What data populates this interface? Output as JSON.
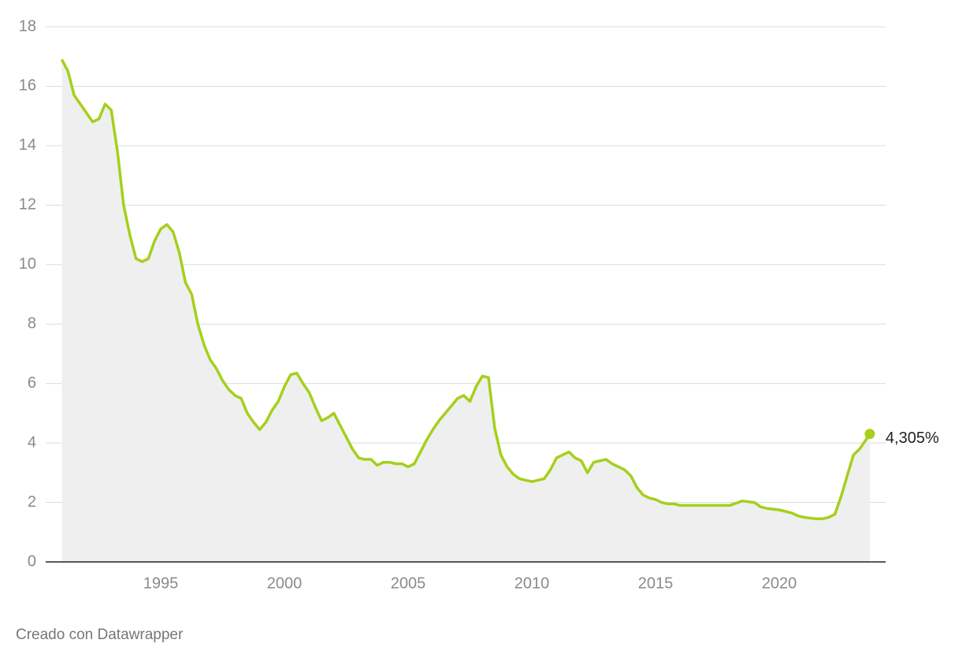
{
  "chart_data": {
    "type": "line",
    "x": [
      1991.0,
      1991.25,
      1991.5,
      1991.75,
      1992.0,
      1992.25,
      1992.5,
      1992.75,
      1993.0,
      1993.25,
      1993.5,
      1993.75,
      1994.0,
      1994.25,
      1994.5,
      1994.75,
      1995.0,
      1995.25,
      1995.5,
      1995.75,
      1996.0,
      1996.25,
      1996.5,
      1996.75,
      1997.0,
      1997.25,
      1997.5,
      1997.75,
      1998.0,
      1998.25,
      1998.5,
      1998.75,
      1999.0,
      1999.25,
      1999.5,
      1999.75,
      2000.0,
      2000.25,
      2000.5,
      2000.75,
      2001.0,
      2001.25,
      2001.5,
      2001.75,
      2002.0,
      2002.25,
      2002.5,
      2002.75,
      2003.0,
      2003.25,
      2003.5,
      2003.75,
      2004.0,
      2004.25,
      2004.5,
      2004.75,
      2005.0,
      2005.25,
      2005.5,
      2005.75,
      2006.0,
      2006.25,
      2006.5,
      2006.75,
      2007.0,
      2007.25,
      2007.5,
      2007.75,
      2008.0,
      2008.25,
      2008.5,
      2008.75,
      2009.0,
      2009.25,
      2009.5,
      2009.75,
      2010.0,
      2010.25,
      2010.5,
      2010.75,
      2011.0,
      2011.25,
      2011.5,
      2011.75,
      2012.0,
      2012.25,
      2012.5,
      2012.75,
      2013.0,
      2013.25,
      2013.5,
      2013.75,
      2014.0,
      2014.25,
      2014.5,
      2014.75,
      2015.0,
      2015.25,
      2015.5,
      2015.75,
      2016.0,
      2016.5,
      2017.0,
      2017.5,
      2018.0,
      2018.5,
      2019.0,
      2019.25,
      2019.5,
      2020.0,
      2020.5,
      2020.75,
      2021.0,
      2021.5,
      2021.75,
      2022.0,
      2022.25,
      2022.5,
      2022.75,
      2023.0,
      2023.25,
      2023.5,
      2023.66
    ],
    "series": [
      {
        "color": "#a6cf1c",
        "area_color": "#efefef",
        "values": [
          16.9,
          16.5,
          15.7,
          15.4,
          15.1,
          14.8,
          14.9,
          15.4,
          15.2,
          13.8,
          12.0,
          11.0,
          10.2,
          10.1,
          10.2,
          10.8,
          11.2,
          11.35,
          11.1,
          10.4,
          9.4,
          9.0,
          8.0,
          7.3,
          6.8,
          6.5,
          6.1,
          5.8,
          5.6,
          5.5,
          5.0,
          4.7,
          4.45,
          4.7,
          5.1,
          5.4,
          5.9,
          6.3,
          6.35,
          6.0,
          5.7,
          5.2,
          4.75,
          4.85,
          5.0,
          4.6,
          4.2,
          3.8,
          3.5,
          3.45,
          3.45,
          3.25,
          3.35,
          3.35,
          3.3,
          3.3,
          3.2,
          3.3,
          3.7,
          4.1,
          4.45,
          4.75,
          5.0,
          5.25,
          5.5,
          5.6,
          5.4,
          5.9,
          6.25,
          6.2,
          4.5,
          3.6,
          3.2,
          2.95,
          2.8,
          2.75,
          2.7,
          2.75,
          2.8,
          3.1,
          3.5,
          3.6,
          3.7,
          3.5,
          3.4,
          3.0,
          3.35,
          3.4,
          3.45,
          3.3,
          3.2,
          3.1,
          2.9,
          2.5,
          2.25,
          2.15,
          2.1,
          2.0,
          1.95,
          1.95,
          1.9,
          1.9,
          1.9,
          1.9,
          1.9,
          2.05,
          2.0,
          1.85,
          1.8,
          1.75,
          1.65,
          1.55,
          1.5,
          1.45,
          1.45,
          1.5,
          1.6,
          2.2,
          2.9,
          3.6,
          3.8,
          4.1,
          4.305
        ]
      }
    ],
    "annotations": [
      {
        "text": "4,305%"
      }
    ],
    "xlim": [
      1990.35,
      2024.3
    ],
    "xticks": [
      1995,
      2000,
      2005,
      2010,
      2015,
      2020
    ],
    "ylim": [
      0,
      18
    ],
    "yticks": [
      0,
      2,
      4,
      6,
      8,
      10,
      12,
      14,
      16,
      18
    ],
    "grid": true,
    "credit": "Creado con Datawrapper"
  }
}
